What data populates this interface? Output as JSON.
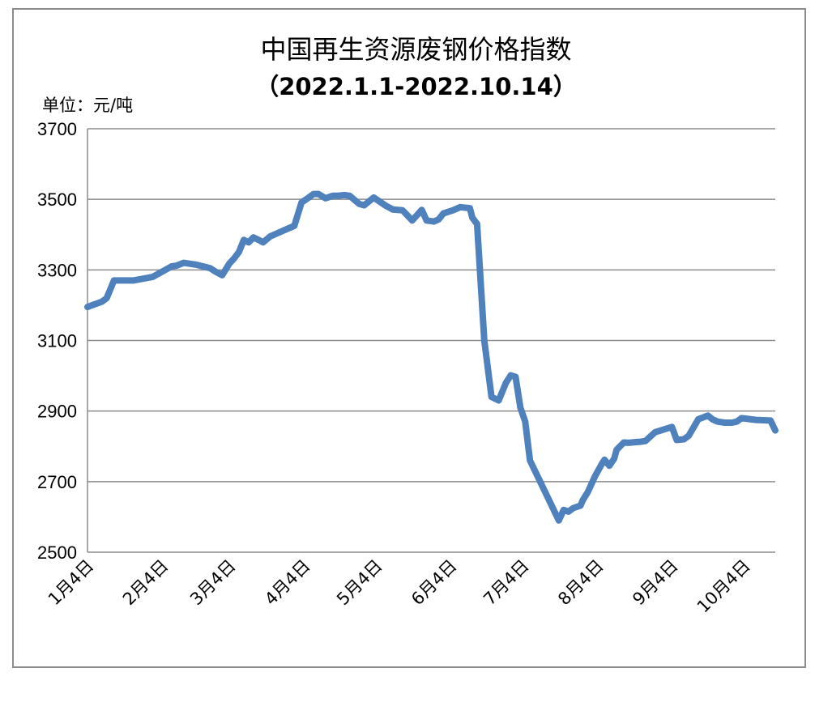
{
  "chart_data": {
    "type": "line",
    "title": "中国再生资源废钢价格指数",
    "subtitle": "（2022.1.1-2022.10.14）",
    "unit_label": "单位：元/吨",
    "ylim": [
      2500,
      3700
    ],
    "yticks": [
      2500,
      2700,
      2900,
      3100,
      3300,
      3500,
      3700
    ],
    "xtick_labels": [
      "1月4日",
      "2月4日",
      "3月4日",
      "4月4日",
      "5月4日",
      "6月4日",
      "7月4日",
      "8月4日",
      "9月4日",
      "10月4日"
    ],
    "grid": "horizontal",
    "line_color": "#4f81bd",
    "series": [
      {
        "x": [
          "2022-01-01",
          "2022-01-03",
          "2022-01-07",
          "2022-01-09",
          "2022-01-12",
          "2022-01-20",
          "2022-01-28",
          "2022-02-05",
          "2022-02-07",
          "2022-02-10",
          "2022-02-15",
          "2022-02-21",
          "2022-02-23",
          "2022-02-26",
          "2022-03-01",
          "2022-03-03",
          "2022-03-05",
          "2022-03-07",
          "2022-03-09",
          "2022-03-11",
          "2022-03-14",
          "2022-03-15",
          "2022-03-18",
          "2022-03-21",
          "2022-03-24",
          "2022-03-28",
          "2022-03-31",
          "2022-04-03",
          "2022-04-05",
          "2022-04-07",
          "2022-04-10",
          "2022-04-13",
          "2022-04-15",
          "2022-04-18",
          "2022-04-20",
          "2022-04-24",
          "2022-04-26",
          "2022-04-30",
          "2022-05-05",
          "2022-05-08",
          "2022-05-12",
          "2022-05-16",
          "2022-05-20",
          "2022-05-22",
          "2022-05-25",
          "2022-05-27",
          "2022-05-29",
          "2022-06-02",
          "2022-06-05",
          "2022-06-09",
          "2022-06-10",
          "2022-06-12",
          "2022-06-15",
          "2022-06-18",
          "2022-06-21",
          "2022-06-24",
          "2022-06-26",
          "2022-06-28",
          "2022-06-30",
          "2022-07-02",
          "2022-07-04",
          "2022-07-16",
          "2022-07-18",
          "2022-07-20",
          "2022-07-22",
          "2022-07-25",
          "2022-07-26",
          "2022-07-28",
          "2022-07-31",
          "2022-08-03",
          "2022-08-04",
          "2022-08-06",
          "2022-08-08",
          "2022-08-09",
          "2022-08-12",
          "2022-08-14",
          "2022-08-17",
          "2022-08-19",
          "2022-08-21",
          "2022-08-25",
          "2022-09-01",
          "2022-09-03",
          "2022-09-06",
          "2022-09-08",
          "2022-09-12",
          "2022-09-16",
          "2022-09-18",
          "2022-09-20",
          "2022-09-23",
          "2022-09-26",
          "2022-09-28",
          "2022-09-30",
          "2022-10-06",
          "2022-10-12",
          "2022-10-14"
        ],
        "y": [
          3195,
          3200,
          3210,
          3220,
          3270,
          3270,
          3280,
          3310,
          3312,
          3320,
          3315,
          3305,
          3296,
          3285,
          3318,
          3333,
          3351,
          3385,
          3378,
          3392,
          3382,
          3378,
          3395,
          3404,
          3413,
          3425,
          3491,
          3505,
          3515,
          3515,
          3503,
          3510,
          3510,
          3512,
          3510,
          3487,
          3483,
          3505,
          3482,
          3471,
          3469,
          3440,
          3470,
          3440,
          3437,
          3443,
          3460,
          3469,
          3478,
          3475,
          3448,
          3430,
          3100,
          2940,
          2930,
          2980,
          3001,
          2997,
          2910,
          2870,
          2760,
          2590,
          2620,
          2615,
          2625,
          2632,
          2648,
          2670,
          2715,
          2752,
          2762,
          2745,
          2765,
          2790,
          2811,
          2810,
          2812,
          2813,
          2815,
          2840,
          2855,
          2818,
          2820,
          2830,
          2877,
          2887,
          2876,
          2870,
          2867,
          2867,
          2870,
          2880,
          2875,
          2873,
          2845
        ]
      }
    ]
  }
}
